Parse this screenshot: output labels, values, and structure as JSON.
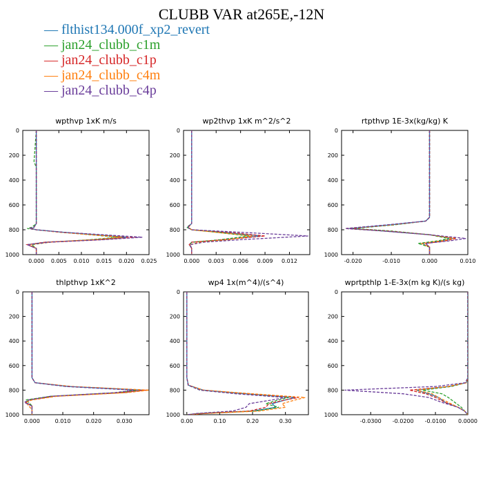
{
  "title": "CLUBB VAR at265E,-12N",
  "legend": [
    {
      "label": "flthist134.000f_xp2_revert",
      "color": "#1f77b4",
      "style": "solid"
    },
    {
      "label": "jan24_clubb_c1m",
      "color": "#2ca02c",
      "style": "dashed"
    },
    {
      "label": "jan24_clubb_c1p",
      "color": "#d62728",
      "style": "dashed"
    },
    {
      "label": "jan24_clubb_c4m",
      "color": "#ff7f0e",
      "style": "dashed"
    },
    {
      "label": "jan24_clubb_c4p",
      "color": "#6a3d9a",
      "style": "dashed"
    }
  ],
  "chart_data": [
    {
      "type": "line",
      "title": "wpthvp 1xK m/s",
      "xlim": [
        -0.003,
        0.025
      ],
      "ylim": [
        1000,
        0
      ],
      "xticks": [
        0.0,
        0.005,
        0.01,
        0.015,
        0.02,
        0.025
      ],
      "xticklabels": [
        "0.000",
        "0.005",
        "0.010",
        "0.015",
        "0.020",
        "0.025"
      ],
      "yticks": [
        0,
        200,
        400,
        600,
        800,
        1000
      ],
      "y": [
        0,
        250,
        300,
        700,
        750,
        780,
        790,
        800,
        820,
        860,
        880,
        900,
        920,
        950,
        1000
      ],
      "series": [
        {
          "values": [
            0.0,
            0.0,
            0.0,
            0.0,
            0.0,
            -0.0005,
            -0.001,
            0.0,
            0.006,
            0.02,
            0.013,
            0.002,
            -0.002,
            0.0,
            0.0
          ]
        },
        {
          "values": [
            0.0,
            -0.0005,
            0.0,
            0.0,
            0.0,
            -0.001,
            -0.002,
            0.0,
            0.006,
            0.018,
            0.012,
            0.003,
            -0.001,
            0.0,
            0.0
          ]
        },
        {
          "values": [
            0.0,
            0.0,
            0.0,
            0.0,
            0.0,
            -0.0005,
            -0.0015,
            0.0,
            0.006,
            0.022,
            0.014,
            0.002,
            -0.002,
            0.0,
            0.0
          ]
        },
        {
          "values": [
            0.0,
            0.0,
            0.0,
            0.0,
            0.0,
            -0.0005,
            -0.001,
            0.0,
            0.005,
            0.019,
            0.013,
            0.003,
            -0.0015,
            0.0,
            0.0
          ]
        },
        {
          "values": [
            0.0,
            0.0,
            0.0,
            0.0,
            0.0,
            -0.0005,
            -0.0015,
            0.0,
            0.006,
            0.0235,
            0.015,
            0.003,
            -0.002,
            0.0,
            0.0
          ]
        }
      ]
    },
    {
      "type": "line",
      "title": "wp2thvp 1xK m^2/s^2",
      "xlim": [
        -0.001,
        0.0145
      ],
      "ylim": [
        1000,
        0
      ],
      "xticks": [
        0.0,
        0.003,
        0.006,
        0.009,
        0.012
      ],
      "xticklabels": [
        "0.000",
        "0.003",
        "0.006",
        "0.009",
        "0.012"
      ],
      "yticks": [
        0,
        200,
        400,
        600,
        800,
        1000
      ],
      "y": [
        0,
        700,
        750,
        780,
        800,
        820,
        850,
        880,
        900,
        920,
        950,
        1000
      ],
      "series": [
        {
          "values": [
            0.0,
            0.0,
            0.0,
            -0.0005,
            0.0,
            0.004,
            0.0085,
            0.004,
            0.0,
            -0.0003,
            0.0,
            0.0
          ]
        },
        {
          "values": [
            0.0,
            0.0,
            0.0,
            -0.0006,
            0.0,
            0.003,
            0.007,
            0.0035,
            0.0,
            -0.0002,
            0.0,
            0.0
          ]
        },
        {
          "values": [
            0.0,
            0.0,
            0.0,
            -0.0005,
            0.0,
            0.0045,
            0.009,
            0.004,
            0.0,
            -0.0003,
            0.0,
            0.0
          ]
        },
        {
          "values": [
            0.0,
            0.0,
            0.0,
            -0.0004,
            0.0,
            0.003,
            0.0075,
            0.0045,
            0.001,
            -0.0002,
            0.0,
            0.0
          ]
        },
        {
          "values": [
            0.0,
            0.0,
            0.0,
            -0.0005,
            0.0,
            0.006,
            0.0143,
            0.006,
            0.0015,
            -0.0002,
            0.0,
            0.0
          ]
        }
      ]
    },
    {
      "type": "line",
      "title": "rtpthvp 1E-3x(kg/kg) K",
      "xlim": [
        -0.023,
        0.01
      ],
      "ylim": [
        1000,
        0
      ],
      "xticks": [
        -0.02,
        -0.01,
        0.0,
        0.01
      ],
      "xticklabels": [
        "-0.020",
        "-0.010",
        "0.000",
        "0.010"
      ],
      "yticks": [
        0,
        200,
        400,
        600,
        800,
        1000
      ],
      "y": [
        0,
        700,
        730,
        760,
        790,
        810,
        840,
        870,
        890,
        910,
        940,
        1000
      ],
      "series": [
        {
          "values": [
            0.0,
            0.0,
            -0.001,
            -0.01,
            -0.021,
            -0.012,
            0.0,
            0.006,
            0.003,
            -0.002,
            0.0,
            0.0
          ]
        },
        {
          "values": [
            0.0,
            0.0,
            -0.001,
            -0.009,
            -0.02,
            -0.01,
            0.0,
            0.005,
            0.002,
            -0.003,
            0.0,
            0.0
          ]
        },
        {
          "values": [
            0.0,
            0.0,
            -0.001,
            -0.01,
            -0.021,
            -0.011,
            0.0,
            0.007,
            0.004,
            -0.001,
            0.0,
            0.0
          ]
        },
        {
          "values": [
            0.0,
            0.0,
            -0.001,
            -0.01,
            -0.022,
            -0.012,
            0.0,
            0.0065,
            0.003,
            -0.002,
            0.0,
            0.0
          ]
        },
        {
          "values": [
            0.0,
            0.0,
            -0.001,
            -0.011,
            -0.022,
            -0.012,
            0.0,
            0.0095,
            0.005,
            -0.001,
            0.0,
            0.0
          ]
        }
      ]
    },
    {
      "type": "line",
      "title": "thlpthvp 1xK^2",
      "xlim": [
        -0.003,
        0.038
      ],
      "ylim": [
        1000,
        0
      ],
      "xticks": [
        0.0,
        0.01,
        0.02,
        0.03
      ],
      "xticklabels": [
        "0.000",
        "0.010",
        "0.020",
        "0.030"
      ],
      "yticks": [
        0,
        200,
        400,
        600,
        800,
        1000
      ],
      "y": [
        0,
        700,
        740,
        770,
        800,
        820,
        850,
        880,
        900,
        930,
        960,
        1000
      ],
      "series": [
        {
          "values": [
            0.0,
            0.0,
            0.001,
            0.012,
            0.036,
            0.03,
            0.007,
            -0.001,
            -0.002,
            0.0,
            0.0,
            0.0
          ]
        },
        {
          "values": [
            0.0,
            0.0,
            0.001,
            0.011,
            0.034,
            0.028,
            0.006,
            -0.002,
            -0.001,
            0.0,
            0.0,
            0.0
          ]
        },
        {
          "values": [
            0.0,
            0.0,
            0.001,
            0.012,
            0.037,
            0.029,
            0.007,
            -0.001,
            -0.002,
            0.0,
            0.0,
            0.0
          ]
        },
        {
          "values": [
            0.0,
            0.0,
            0.001,
            0.013,
            0.038,
            0.031,
            0.008,
            0.0,
            -0.002,
            -0.001,
            0.0,
            0.0
          ]
        },
        {
          "values": [
            0.0,
            0.0,
            0.001,
            0.011,
            0.033,
            0.027,
            0.006,
            -0.001,
            -0.0025,
            0.0,
            0.0,
            0.0
          ]
        }
      ]
    },
    {
      "type": "line",
      "title": "wp4 1x(m^4)/(s^4)",
      "xlim": [
        -0.01,
        0.37
      ],
      "ylim": [
        1000,
        0
      ],
      "xticks": [
        0.0,
        0.1,
        0.2,
        0.3
      ],
      "xticklabels": [
        "0.00",
        "0.10",
        "0.20",
        "0.30"
      ],
      "yticks": [
        0,
        200,
        400,
        600,
        800,
        1000
      ],
      "y": [
        0,
        700,
        760,
        800,
        830,
        860,
        880,
        910,
        940,
        970,
        990,
        1000
      ],
      "series": [
        {
          "values": [
            0.0,
            0.0,
            0.005,
            0.05,
            0.18,
            0.33,
            0.3,
            0.26,
            0.27,
            0.2,
            0.05,
            0.0
          ]
        },
        {
          "values": [
            0.0,
            0.0,
            0.004,
            0.04,
            0.16,
            0.31,
            0.28,
            0.24,
            0.28,
            0.21,
            0.04,
            0.0
          ]
        },
        {
          "values": [
            0.0,
            0.0,
            0.005,
            0.05,
            0.19,
            0.34,
            0.3,
            0.25,
            0.24,
            0.19,
            0.05,
            0.0
          ]
        },
        {
          "values": [
            0.0,
            0.0,
            0.005,
            0.05,
            0.2,
            0.36,
            0.33,
            0.29,
            0.3,
            0.22,
            0.06,
            0.0
          ]
        },
        {
          "values": [
            0.0,
            0.0,
            0.004,
            0.04,
            0.15,
            0.3,
            0.26,
            0.19,
            0.18,
            0.14,
            0.03,
            0.0
          ]
        }
      ]
    },
    {
      "type": "line",
      "title": "wprtpthlp 1-E-3x(m kg K)/(s kg)",
      "xlim": [
        -0.039,
        0.0
      ],
      "ylim": [
        1000,
        0
      ],
      "xticks": [
        -0.03,
        -0.02,
        -0.01,
        0.0
      ],
      "xticklabels": [
        "-0.0300",
        "-0.0200",
        "-0.0100",
        "0.0000"
      ],
      "yticks": [
        0,
        200,
        400,
        600,
        800,
        1000
      ],
      "y": [
        0,
        700,
        740,
        770,
        800,
        830,
        860,
        900,
        940,
        970,
        1000
      ],
      "series": [
        {
          "values": [
            0.0,
            0.0,
            -0.0005,
            -0.006,
            -0.016,
            -0.012,
            -0.009,
            -0.007,
            -0.003,
            -0.001,
            0.0
          ]
        },
        {
          "values": [
            0.0,
            0.0,
            -0.0005,
            -0.005,
            -0.014,
            -0.008,
            -0.006,
            -0.004,
            -0.002,
            -0.001,
            0.0
          ]
        },
        {
          "values": [
            0.0,
            0.0,
            -0.0005,
            -0.006,
            -0.018,
            -0.013,
            -0.01,
            -0.007,
            -0.003,
            -0.001,
            0.0
          ]
        },
        {
          "values": [
            0.0,
            0.0,
            -0.0005,
            -0.006,
            -0.016,
            -0.011,
            -0.009,
            -0.006,
            -0.003,
            -0.001,
            0.0
          ]
        },
        {
          "values": [
            0.0,
            0.0,
            -0.0008,
            -0.01,
            -0.038,
            -0.02,
            -0.012,
            -0.008,
            -0.003,
            -0.001,
            0.0
          ]
        }
      ]
    }
  ]
}
